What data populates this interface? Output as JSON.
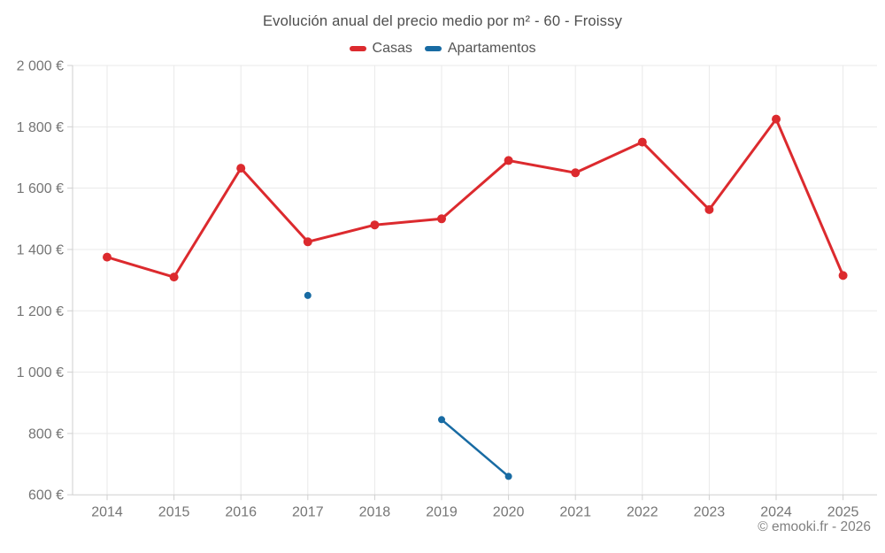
{
  "title": "Evolución anual del precio medio por m² - 60 - Froissy",
  "legend": [
    {
      "label": "Casas",
      "color": "#dc2a2e"
    },
    {
      "label": "Apartamentos",
      "color": "#186ba3"
    }
  ],
  "footer": "© emooki.fr - 2026",
  "colors": {
    "grid": "#e9e9e9",
    "axis": "#cfcfcf",
    "tick_label": "#757575",
    "title": "#4d4d4d",
    "footer_text": "#808080"
  },
  "chart_data": {
    "type": "line",
    "title": "Evolución anual del precio medio por m² - 60 - Froissy",
    "categories": [
      "2014",
      "2015",
      "2016",
      "2017",
      "2018",
      "2019",
      "2020",
      "2021",
      "2022",
      "2023",
      "2024",
      "2025"
    ],
    "series": [
      {
        "name": "Casas",
        "color": "#dc2a2e",
        "values": [
          1375,
          1310,
          1665,
          1425,
          1480,
          1500,
          1690,
          1650,
          1750,
          1530,
          1825,
          1315
        ],
        "point_radius": 5,
        "line_width": 3
      },
      {
        "name": "Apartamentos",
        "color": "#186ba3",
        "values": [
          null,
          null,
          null,
          1250,
          null,
          845,
          660,
          null,
          null,
          null,
          null,
          null
        ],
        "point_radius": 4,
        "line_width": 2.5
      }
    ],
    "xlabel": "",
    "ylabel": "",
    "ylim": [
      600,
      2000
    ],
    "ytick_values": [
      600,
      800,
      1000,
      1200,
      1400,
      1600,
      1800,
      2000
    ],
    "ytick_labels": [
      "600 €",
      "800 €",
      "1 000 €",
      "1 200 €",
      "1 400 €",
      "1 600 €",
      "1 800 €",
      "2 000 €"
    ],
    "grid": true,
    "legend_position": "top"
  }
}
